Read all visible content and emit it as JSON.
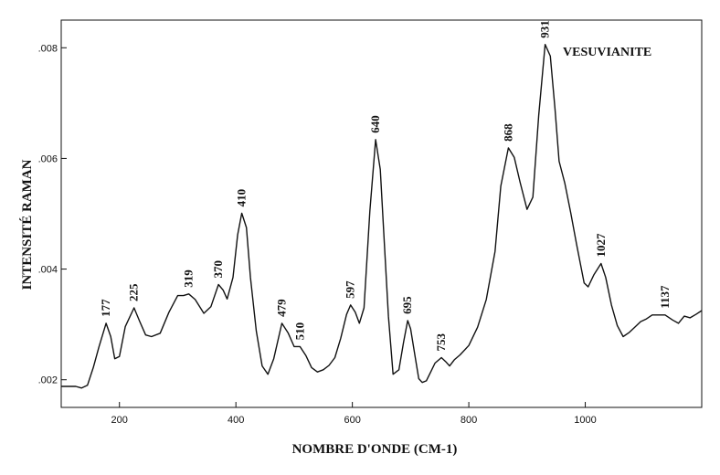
{
  "chart_data": {
    "type": "line",
    "title": "VESUVIANITE",
    "xlabel": "NOMBRE D'ONDE (CM-1)",
    "ylabel": "INTENSITÉ RAMAN",
    "xlim": [
      100,
      1200
    ],
    "ylim": [
      0.0015,
      0.0085
    ],
    "x_ticks": [
      200,
      400,
      600,
      800,
      1000
    ],
    "x_tick_labels": [
      "200",
      "400",
      "600",
      "800",
      "1000"
    ],
    "y_ticks": [
      0.002,
      0.004,
      0.006,
      0.008
    ],
    "y_tick_labels": [
      ".002",
      ".004",
      ".006",
      ".008"
    ],
    "grid": false,
    "peak_labels": [
      {
        "x": 177,
        "label": "177",
        "y": 0.00302
      },
      {
        "x": 225,
        "label": "225",
        "y": 0.0033
      },
      {
        "x": 319,
        "label": "319",
        "y": 0.00355
      },
      {
        "x": 370,
        "label": "370",
        "y": 0.00372
      },
      {
        "x": 410,
        "label": "410",
        "y": 0.00501
      },
      {
        "x": 479,
        "label": "479",
        "y": 0.00302
      },
      {
        "x": 510,
        "label": "510",
        "y": 0.0026
      },
      {
        "x": 597,
        "label": "597",
        "y": 0.00335
      },
      {
        "x": 640,
        "label": "640",
        "y": 0.00634
      },
      {
        "x": 695,
        "label": "695",
        "y": 0.00307
      },
      {
        "x": 753,
        "label": "753",
        "y": 0.0024
      },
      {
        "x": 868,
        "label": "868",
        "y": 0.00619
      },
      {
        "x": 931,
        "label": "931",
        "y": 0.00806
      },
      {
        "x": 1027,
        "label": "1027",
        "y": 0.0041
      },
      {
        "x": 1137,
        "label": "1137",
        "y": 0.00317
      }
    ],
    "series": [
      {
        "x": [
          100,
          125,
          135,
          145,
          155,
          165,
          177,
          185,
          192,
          200,
          210,
          225,
          235,
          245,
          255,
          270,
          285,
          300,
          310,
          319,
          330,
          345,
          357,
          370,
          378,
          385,
          395,
          403,
          410,
          418,
          425,
          435,
          445,
          455,
          465,
          479,
          490,
          500,
          510,
          520,
          530,
          540,
          550,
          560,
          570,
          580,
          590,
          597,
          605,
          612,
          620,
          630,
          640,
          648,
          655,
          662,
          670,
          680,
          688,
          695,
          700,
          708,
          714,
          720,
          727,
          735,
          742,
          753,
          760,
          767,
          775,
          785,
          800,
          815,
          830,
          845,
          855,
          868,
          878,
          888,
          900,
          910,
          920,
          931,
          940,
          948,
          955,
          965,
          975,
          985,
          998,
          1005,
          1015,
          1027,
          1035,
          1045,
          1055,
          1065,
          1075,
          1085,
          1095,
          1105,
          1115,
          1125,
          1137,
          1150,
          1160,
          1170,
          1180,
          1190,
          1200
        ],
        "y": [
          0.00188,
          0.00188,
          0.00185,
          0.0019,
          0.00222,
          0.0026,
          0.00302,
          0.00278,
          0.00238,
          0.00242,
          0.00296,
          0.0033,
          0.00305,
          0.00281,
          0.00278,
          0.00284,
          0.00322,
          0.00352,
          0.00352,
          0.00355,
          0.00345,
          0.0032,
          0.00332,
          0.00372,
          0.00362,
          0.00346,
          0.00385,
          0.00462,
          0.00501,
          0.00475,
          0.00385,
          0.00288,
          0.00225,
          0.0021,
          0.00238,
          0.00302,
          0.00284,
          0.0026,
          0.0026,
          0.00244,
          0.00222,
          0.00214,
          0.00218,
          0.00226,
          0.0024,
          0.00275,
          0.00318,
          0.00335,
          0.00322,
          0.00302,
          0.0033,
          0.00505,
          0.00634,
          0.0058,
          0.00445,
          0.00315,
          0.0021,
          0.00218,
          0.00268,
          0.00307,
          0.00292,
          0.0024,
          0.00202,
          0.00195,
          0.00198,
          0.00215,
          0.0023,
          0.0024,
          0.00233,
          0.00225,
          0.00236,
          0.00245,
          0.00262,
          0.00295,
          0.00345,
          0.00432,
          0.0055,
          0.00619,
          0.00602,
          0.00557,
          0.00508,
          0.0053,
          0.00678,
          0.00806,
          0.00785,
          0.0069,
          0.00595,
          0.00555,
          0.00502,
          0.00445,
          0.00375,
          0.00368,
          0.0039,
          0.0041,
          0.00385,
          0.00335,
          0.00298,
          0.00278,
          0.00285,
          0.00295,
          0.00305,
          0.0031,
          0.00317,
          0.00317,
          0.00317,
          0.00308,
          0.00302,
          0.00315,
          0.00312,
          0.00318,
          0.00325
        ]
      }
    ]
  }
}
